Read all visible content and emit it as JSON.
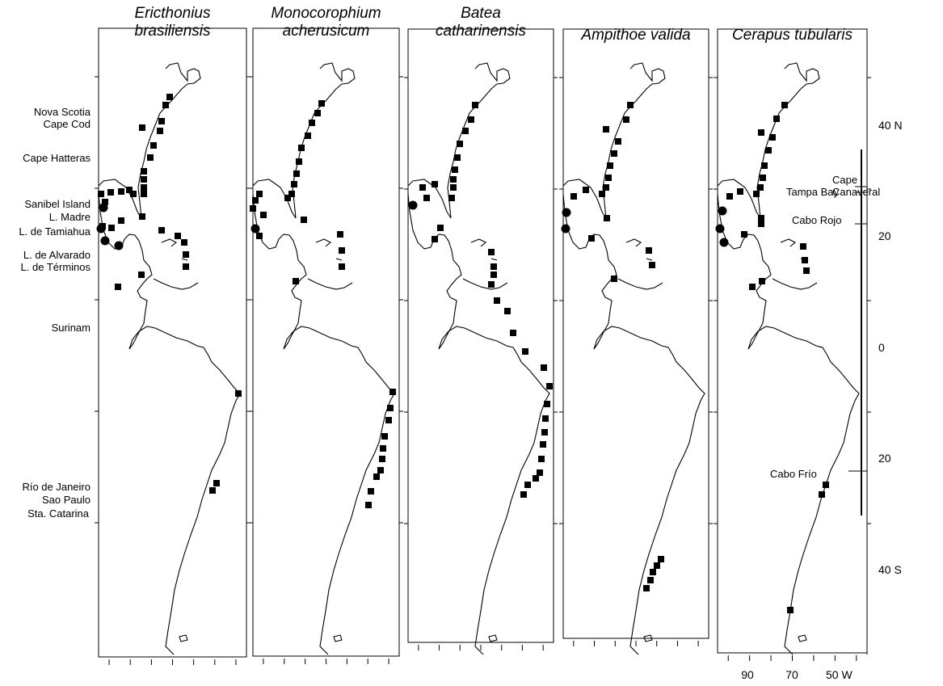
{
  "panels": [
    {
      "title": [
        "Ericthonius",
        "brasiliensis"
      ]
    },
    {
      "title": [
        "Monocorophium",
        "acherusicum"
      ]
    },
    {
      "title": [
        "Batea",
        "catharinensis"
      ]
    },
    {
      "title": [
        "Ampithoe valida"
      ]
    },
    {
      "title": [
        "Cerapus tubularis"
      ]
    }
  ],
  "left_labels": [
    "Nova Scotia",
    "Cape Cod",
    "Cape Hatteras",
    "Sanibel Island",
    "L. Madre",
    "L. de Tamiahua",
    "L. de Alvarado",
    "L. de Términos",
    "Surinam",
    "Río de Janeiro",
    "Sao Paulo",
    "Sta. Catarina"
  ],
  "right_labels": [
    {
      "lines": [
        "Cape",
        "Canaveral"
      ]
    },
    {
      "lines": [
        "Tampa Bay"
      ]
    },
    {
      "lines": [
        "Cabo Rojo"
      ]
    },
    {
      "lines": [
        "Cabo Frío"
      ]
    }
  ],
  "lat_ticks": [
    "40 N",
    "20",
    "0",
    "20",
    "40 S"
  ],
  "lon_ticks": [
    "90",
    "70",
    "50 W"
  ]
}
